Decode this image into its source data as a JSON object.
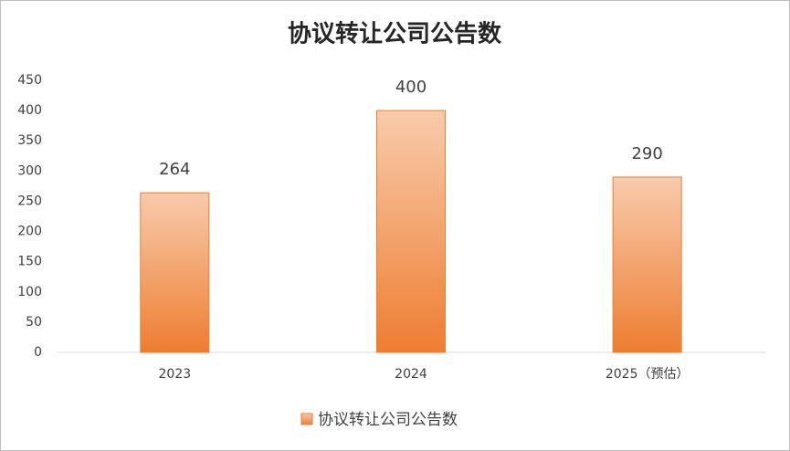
{
  "chart_data": {
    "type": "bar",
    "title": "协议转让公司公告数",
    "categories": [
      "2023",
      "2024",
      "2025（预估）"
    ],
    "series": [
      {
        "name": "协议转让公司公告数",
        "color": "#ed7d31",
        "values": [
          264,
          400,
          290
        ]
      }
    ],
    "ylim": [
      0,
      450
    ],
    "yticks": [
      0,
      50,
      100,
      150,
      200,
      250,
      300,
      350,
      400,
      450
    ],
    "grid": false,
    "legend": "bottom",
    "data_labels": true
  }
}
